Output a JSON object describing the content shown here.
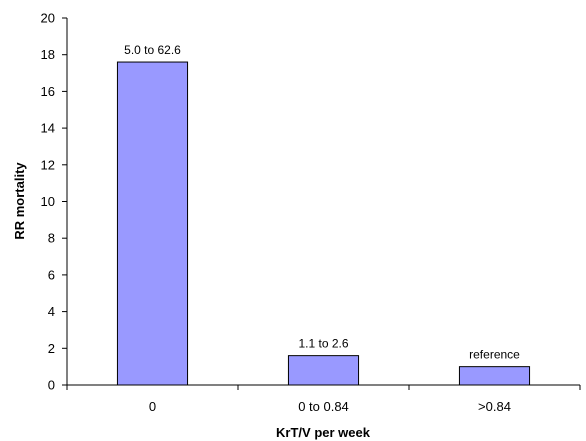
{
  "chart_data": {
    "type": "bar",
    "categories": [
      "0",
      "0 to 0.84",
      ">0.84"
    ],
    "values": [
      17.6,
      1.6,
      1.0
    ],
    "data_labels": [
      "5.0 to 62.6",
      "1.1 to 2.6",
      "reference"
    ],
    "title": "",
    "xlabel": "KrT/V per week",
    "ylabel": "RR mortality",
    "ylim": [
      0,
      20
    ],
    "yticks": [
      "0",
      "2",
      "4",
      "6",
      "8",
      "10",
      "12",
      "14",
      "16",
      "18",
      "20"
    ],
    "grid": false,
    "legend": "none",
    "bar_color": "#9999ff",
    "bar_edge_color": "#000000"
  }
}
